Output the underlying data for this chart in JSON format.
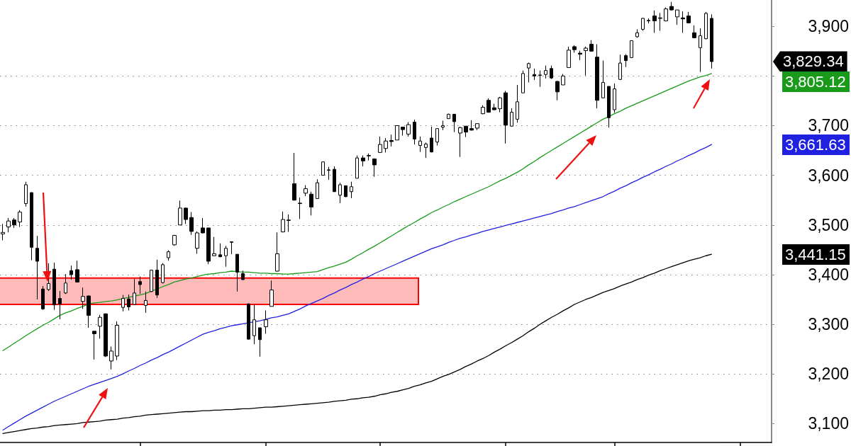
{
  "chart_data": {
    "type": "candlestick",
    "categories": [
      null,
      null,
      null,
      null,
      null,
      null,
      null,
      null,
      null,
      null,
      null,
      null,
      null,
      null,
      null,
      null,
      null,
      null,
      null,
      null,
      null,
      null,
      null,
      null,
      null,
      null,
      null,
      null,
      null,
      null,
      null,
      null,
      null,
      null,
      null,
      null,
      null,
      null,
      null,
      null,
      null,
      null,
      null,
      null,
      null,
      null,
      null,
      null,
      null,
      null,
      null,
      null,
      null,
      null,
      null,
      null,
      null,
      null,
      null,
      null,
      null,
      null,
      null,
      null,
      null,
      null,
      null,
      null,
      null,
      null,
      null,
      null,
      null,
      null,
      null,
      null,
      null,
      null,
      null,
      null,
      null,
      null,
      null,
      null,
      null,
      null,
      null,
      null,
      null,
      null,
      null,
      null,
      null,
      null,
      null,
      null,
      null,
      null,
      null,
      null,
      null,
      null,
      null,
      null,
      null,
      null,
      null,
      null,
      null,
      null,
      null,
      null,
      null,
      null,
      null,
      null,
      null,
      null,
      null,
      null,
      null,
      null,
      null,
      null,
      null
    ],
    "ohlc": [
      [
        3482,
        3502,
        3469,
        3485
      ],
      [
        3496,
        3514,
        3485,
        3508
      ],
      [
        3510,
        3514,
        3494,
        3500
      ],
      [
        3506,
        3530,
        3496,
        3526
      ],
      [
        3543,
        3587,
        3537,
        3581
      ],
      [
        3565,
        3566,
        3429,
        3455
      ],
      [
        3453,
        3478,
        3350,
        3427
      ],
      [
        3371,
        3377,
        3329,
        3331
      ],
      [
        3370,
        3423,
        3367,
        3382
      ],
      [
        3411,
        3424,
        3329,
        3339
      ],
      [
        3352,
        3367,
        3310,
        3341
      ],
      [
        3363,
        3401,
        3361,
        3383
      ],
      [
        3408,
        3418,
        3390,
        3400
      ],
      [
        3410,
        3428,
        3384,
        3385
      ],
      [
        3346,
        3374,
        3331,
        3356
      ],
      [
        3357,
        3358,
        3293,
        3318
      ],
      [
        3286,
        3286,
        3229,
        3281
      ],
      [
        3296,
        3319,
        3271,
        3314
      ],
      [
        3321,
        3322,
        3234,
        3236
      ],
      [
        3226,
        3255,
        3209,
        3246
      ],
      [
        3236,
        3306,
        3228,
        3298
      ],
      [
        3334,
        3359,
        3326,
        3352
      ],
      [
        3351,
        3360,
        3328,
        3335
      ],
      [
        3340,
        3391,
        3340,
        3363
      ],
      [
        3386,
        3396,
        3361,
        3380
      ],
      [
        3338,
        3366,
        3323,
        3348
      ],
      [
        3366,
        3410,
        3365,
        3409
      ],
      [
        3409,
        3430,
        3353,
        3359
      ],
      [
        3384,
        3423,
        3382,
        3420
      ],
      [
        3434,
        3449,
        3428,
        3446
      ],
      [
        3460,
        3480,
        3458,
        3479
      ],
      [
        3500,
        3549,
        3500,
        3534
      ],
      [
        3534,
        3535,
        3502,
        3511
      ],
      [
        3515,
        3526,
        3480,
        3487
      ],
      [
        3453,
        3487,
        3442,
        3484
      ],
      [
        3494,
        3514,
        3483,
        3484
      ],
      [
        3494,
        3494,
        3421,
        3427
      ],
      [
        3438,
        3476,
        3437,
        3442
      ],
      [
        3440,
        3463,
        3435,
        3436
      ],
      [
        3438,
        3458,
        3416,
        3453
      ],
      [
        3466,
        3466,
        3441,
        3465
      ],
      [
        3441,
        3441,
        3366,
        3405
      ],
      [
        3402,
        3408,
        3389,
        3390
      ],
      [
        3341,
        3342,
        3269,
        3270
      ],
      [
        3277,
        3340,
        3260,
        3309
      ],
      [
        3293,
        3293,
        3235,
        3269
      ],
      [
        3295,
        3328,
        3281,
        3309
      ],
      [
        3336,
        3388,
        3336,
        3369
      ],
      [
        3407,
        3485,
        3406,
        3442
      ],
      [
        3486,
        3527,
        3485,
        3511
      ],
      [
        3509,
        3521,
        3486,
        3510
      ],
      [
        3583,
        3645,
        3549,
        3550
      ],
      [
        3544,
        3555,
        3512,
        3543
      ],
      [
        3564,
        3580,
        3558,
        3573
      ],
      [
        3562,
        3567,
        3519,
        3536
      ],
      [
        3553,
        3592,
        3553,
        3585
      ],
      [
        3600,
        3627,
        3600,
        3627
      ],
      [
        3610,
        3617,
        3591,
        3611
      ],
      [
        3612,
        3618,
        3567,
        3567
      ],
      [
        3560,
        3585,
        3544,
        3581
      ],
      [
        3579,
        3579,
        3556,
        3557
      ],
      [
        3567,
        3587,
        3554,
        3577
      ],
      [
        3594,
        3640,
        3594,
        3635
      ],
      [
        3635,
        3640,
        3618,
        3629
      ],
      [
        3639,
        3644,
        3630,
        3640
      ],
      [
        3633,
        3634,
        3597,
        3621
      ],
      [
        3646,
        3678,
        3645,
        3662
      ],
      [
        3654,
        3675,
        3646,
        3669
      ],
      [
        3670,
        3682,
        3658,
        3668
      ],
      [
        3671,
        3700,
        3671,
        3700
      ],
      [
        3697,
        3697,
        3680,
        3692
      ],
      [
        3683,
        3707,
        3678,
        3702
      ],
      [
        3707,
        3712,
        3662,
        3673
      ],
      [
        3660,
        3678,
        3647,
        3669
      ],
      [
        3656,
        3666,
        3635,
        3663
      ],
      [
        3675,
        3698,
        3646,
        3647
      ],
      [
        3667,
        3695,
        3660,
        3694
      ],
      [
        3697,
        3710,
        3691,
        3700
      ],
      [
        3714,
        3724,
        3714,
        3723
      ],
      [
        3723,
        3723,
        3687,
        3708
      ],
      [
        3685,
        3698,
        3637,
        3696
      ],
      [
        3699,
        3699,
        3677,
        3687
      ],
      [
        3694,
        3711,
        3690,
        3691
      ],
      [
        3695,
        3704,
        3691,
        3704
      ],
      [
        3724,
        3741,
        3723,
        3737
      ],
      [
        3751,
        3755,
        3726,
        3727
      ],
      [
        3736,
        3744,
        3731,
        3732
      ],
      [
        3734,
        3758,
        3727,
        3756
      ],
      [
        3766,
        3770,
        3664,
        3701
      ],
      [
        3699,
        3735,
        3698,
        3727
      ],
      [
        3713,
        3782,
        3706,
        3748
      ],
      [
        3766,
        3811,
        3766,
        3805
      ],
      [
        3816,
        3827,
        3787,
        3825
      ],
      [
        3803,
        3815,
        3792,
        3800
      ],
      [
        3801,
        3811,
        3778,
        3802
      ],
      [
        3803,
        3821,
        3795,
        3811
      ],
      [
        3815,
        3821,
        3794,
        3796
      ],
      [
        3789,
        3790,
        3751,
        3768
      ],
      [
        3782,
        3804,
        3782,
        3800
      ],
      [
        3817,
        3859,
        3816,
        3852
      ],
      [
        3859,
        3862,
        3847,
        3853
      ],
      [
        3846,
        3851,
        3832,
        3844
      ],
      [
        3851,
        3859,
        3801,
        3856
      ],
      [
        3864,
        3872,
        3849,
        3850
      ],
      [
        3838,
        3864,
        3735,
        3751
      ],
      [
        3756,
        3831,
        3755,
        3787
      ],
      [
        3779,
        3779,
        3696,
        3716
      ],
      [
        3732,
        3785,
        3726,
        3774
      ],
      [
        3793,
        3843,
        3792,
        3826
      ],
      [
        3841,
        3844,
        3818,
        3831
      ],
      [
        3837,
        3872,
        3836,
        3871
      ],
      [
        3879,
        3894,
        3877,
        3887
      ],
      [
        3894,
        3917,
        3891,
        3916
      ],
      [
        3911,
        3916,
        3906,
        3912
      ],
      [
        3921,
        3932,
        3887,
        3911
      ],
      [
        3917,
        3927,
        3891,
        3916
      ],
      [
        3911,
        3938,
        3910,
        3935
      ],
      [
        3940,
        3949,
        3932,
        3933
      ],
      [
        3919,
        3933,
        3903,
        3933
      ],
      [
        3917,
        3930,
        3887,
        3915
      ],
      [
        3921,
        3929,
        3906,
        3907
      ],
      [
        3887,
        3902,
        3876,
        3877
      ],
      [
        3857,
        3896,
        3808,
        3881
      ],
      [
        3875,
        3929,
        3874,
        3926
      ],
      [
        3916,
        3924,
        3815,
        3829
      ]
    ],
    "series": [
      {
        "type": "line",
        "color": "#1a9a1a",
        "values": [
          3247,
          3254,
          3262,
          3269,
          3277,
          3284,
          3291,
          3298,
          3304,
          3311,
          3318,
          3323,
          3327,
          3332,
          3336,
          3341,
          3343,
          3344,
          3346,
          3347,
          3349,
          3352,
          3354,
          3357,
          3359,
          3362,
          3367,
          3371,
          3376,
          3380,
          3385,
          3388,
          3391,
          3393,
          3396,
          3399,
          3401,
          3402,
          3404,
          3405,
          3407,
          3406,
          3405,
          3405,
          3404,
          3403,
          3403,
          3402,
          3402,
          3401,
          3401,
          3402,
          3403,
          3404,
          3405,
          3406,
          3410,
          3414,
          3417,
          3421,
          3425,
          3431,
          3438,
          3444,
          3451,
          3457,
          3464,
          3471,
          3478,
          3485,
          3492,
          3499,
          3505,
          3512,
          3518,
          3525,
          3530,
          3536,
          3541,
          3547,
          3552,
          3557,
          3562,
          3567,
          3572,
          3577,
          3583,
          3589,
          3594,
          3600,
          3606,
          3613,
          3621,
          3628,
          3636,
          3643,
          3650,
          3657,
          3664,
          3671,
          3678,
          3685,
          3692,
          3699,
          3706,
          3713,
          3718,
          3724,
          3729,
          3735,
          3740,
          3745,
          3750,
          3755,
          3760,
          3765,
          3770,
          3775,
          3780,
          3785,
          3790,
          3794,
          3798,
          3801,
          3805
        ]
      },
      {
        "type": "line",
        "color": "#2020e0",
        "values": [
          3087,
          3094,
          3101,
          3108,
          3115,
          3121,
          3127,
          3133,
          3139,
          3145,
          3150,
          3155,
          3160,
          3165,
          3170,
          3175,
          3179,
          3183,
          3187,
          3191,
          3195,
          3200,
          3206,
          3211,
          3217,
          3222,
          3228,
          3233,
          3239,
          3244,
          3250,
          3256,
          3262,
          3268,
          3274,
          3280,
          3284,
          3287,
          3291,
          3294,
          3297,
          3299,
          3301,
          3303,
          3305,
          3307,
          3310,
          3313,
          3315,
          3318,
          3321,
          3326,
          3331,
          3337,
          3342,
          3347,
          3352,
          3358,
          3363,
          3369,
          3374,
          3380,
          3385,
          3391,
          3396,
          3402,
          3407,
          3412,
          3417,
          3422,
          3427,
          3432,
          3437,
          3442,
          3447,
          3452,
          3456,
          3460,
          3465,
          3469,
          3473,
          3476,
          3480,
          3483,
          3487,
          3490,
          3493,
          3496,
          3499,
          3502,
          3505,
          3508,
          3511,
          3514,
          3517,
          3520,
          3523,
          3527,
          3530,
          3534,
          3537,
          3541,
          3545,
          3549,
          3553,
          3557,
          3563,
          3568,
          3574,
          3579,
          3585,
          3590,
          3596,
          3601,
          3607,
          3612,
          3618,
          3623,
          3629,
          3634,
          3640,
          3645,
          3651,
          3656,
          3662
        ]
      },
      {
        "type": "line",
        "color": "#000000",
        "values": [
          3080,
          3082,
          3084,
          3086,
          3088,
          3090,
          3091,
          3093,
          3094,
          3096,
          3097,
          3098,
          3099,
          3100,
          3102,
          3103,
          3104,
          3105,
          3107,
          3108,
          3109,
          3111,
          3112,
          3114,
          3115,
          3117,
          3118,
          3119,
          3120,
          3121,
          3122,
          3123,
          3124,
          3124,
          3125,
          3126,
          3126,
          3127,
          3127,
          3128,
          3128,
          3129,
          3130,
          3130,
          3131,
          3132,
          3133,
          3133,
          3134,
          3135,
          3136,
          3137,
          3138,
          3139,
          3140,
          3141,
          3142,
          3143,
          3145,
          3146,
          3147,
          3149,
          3150,
          3152,
          3153,
          3155,
          3158,
          3160,
          3163,
          3165,
          3168,
          3171,
          3175,
          3178,
          3182,
          3185,
          3190,
          3195,
          3199,
          3204,
          3209,
          3215,
          3220,
          3226,
          3231,
          3237,
          3244,
          3250,
          3257,
          3263,
          3270,
          3277,
          3285,
          3292,
          3300,
          3307,
          3314,
          3320,
          3327,
          3333,
          3340,
          3345,
          3350,
          3354,
          3359,
          3364,
          3368,
          3372,
          3377,
          3381,
          3385,
          3390,
          3394,
          3399,
          3403,
          3408,
          3412,
          3416,
          3420,
          3424,
          3428,
          3431,
          3434,
          3438,
          3441
        ]
      }
    ],
    "ylim": [
      3062,
      3953
    ],
    "yticks": [
      {
        "value": 3100,
        "label": "3,100"
      },
      {
        "value": 3200,
        "label": "3,200"
      },
      {
        "value": 3300,
        "label": "3,300"
      },
      {
        "value": 3400,
        "label": "3,400"
      },
      {
        "value": 3500,
        "label": "3,500"
      },
      {
        "value": 3600,
        "label": "3,600"
      },
      {
        "value": 3700,
        "label": "3,700"
      },
      {
        "value": 3800,
        "label": null
      },
      {
        "value": 3900,
        "label": "3,900"
      }
    ],
    "grid": "y",
    "tick_labels": "y",
    "marker": "none",
    "bands": [
      {
        "axis": "y",
        "from": 3340,
        "to": 3393,
        "color": "#ff0000"
      }
    ],
    "annotations": [
      "3,829.34",
      "3,805.12",
      "3,661.63",
      "3,441.15"
    ]
  }
}
